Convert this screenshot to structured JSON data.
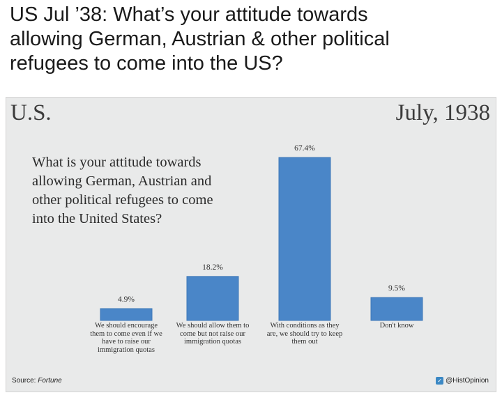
{
  "headline": {
    "lines": [
      "US Jul ’38: What’s your attitude towards",
      "allowing German, Austrian & other political",
      "refugees to come into the US?"
    ]
  },
  "card": {
    "country": "U.S.",
    "date": "July, 1938",
    "question_lines": [
      "What is your attitude towards",
      "allowing German, Austrian and",
      "other political refugees to come",
      "into the United States?"
    ],
    "source_label": "Source: ",
    "source_name": "Fortune",
    "handle": "@HistOpinion"
  },
  "colors": {
    "bar": "#4a86c8",
    "bar_border": "#3d78b8",
    "card_bg": "#e9eaea"
  },
  "chart_data": {
    "type": "bar",
    "title": "What is your attitude towards allowing German, Austrian and other political refugees to come into the United States?",
    "categories": [
      "We should encourage them to come even if we have to raise our immigration quotas",
      "We should allow them to come but not raise our immigration quotas",
      "With conditions as they are, we should try to keep them out",
      "Don't know"
    ],
    "category_lines": [
      [
        "We should encourage",
        "them to come even if we",
        "have to raise our",
        "immigration quotas"
      ],
      [
        "We should allow them to",
        "come but not raise our",
        "immigration quotas"
      ],
      [
        "With conditions as they",
        "are, we should try to keep",
        "them out"
      ],
      [
        "Don't know"
      ]
    ],
    "values": [
      4.9,
      18.2,
      67.4,
      9.5
    ],
    "data_labels": [
      "4.9%",
      "18.2%",
      "67.4%",
      "9.5%"
    ],
    "ylim": [
      0,
      70
    ],
    "xlabel": "",
    "ylabel": ""
  }
}
